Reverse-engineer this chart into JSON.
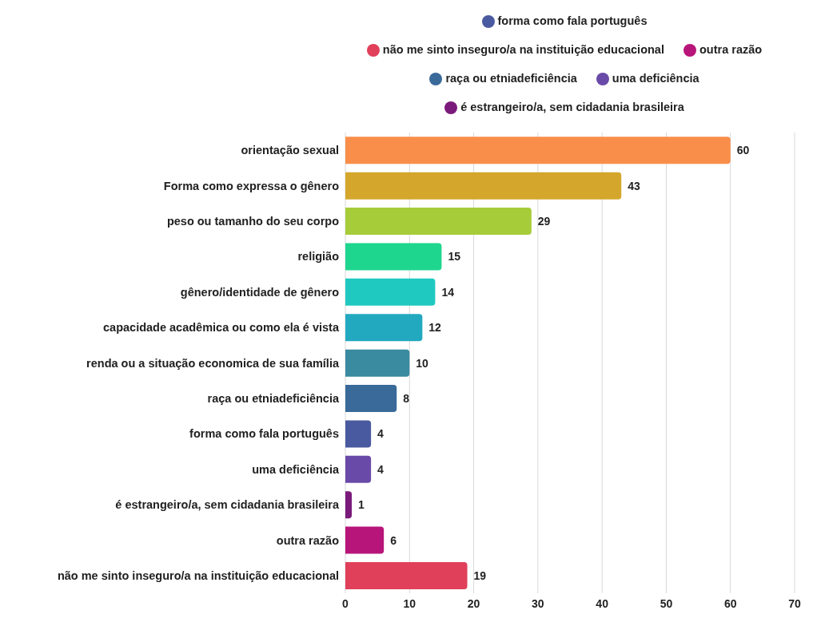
{
  "chart_data": {
    "type": "bar",
    "orientation": "horizontal",
    "stacked": true,
    "data_labels": true,
    "grid": "x",
    "legend": "top",
    "categories": [
      "orientação sexual",
      "Forma como expressa o gênero",
      "peso ou tamanho do seu corpo",
      "religião",
      "gênero/identidade de gênero",
      "capacidade acadêmica ou como ela é vista",
      "renda ou a situação economica de sua família",
      "raça ou etniadeficiência",
      "forma como fala português",
      "uma deficiência",
      "é estrangeiro/a, sem cidadania brasileira",
      "outra razão",
      "não me sinto inseguro/a na instituição educacional"
    ],
    "xlim": [
      0,
      70
    ],
    "xticks": [
      0,
      10,
      20,
      30,
      40,
      50,
      60,
      70
    ],
    "series": [
      {
        "color": "#f98e4a",
        "values": [
          60,
          null,
          null,
          null,
          null,
          null,
          null,
          null,
          null,
          null,
          null,
          null,
          null
        ]
      },
      {
        "color": "#d4a72c",
        "values": [
          null,
          43,
          null,
          null,
          null,
          null,
          null,
          null,
          null,
          null,
          null,
          null,
          null
        ]
      },
      {
        "color": "#a6cc3a",
        "values": [
          null,
          null,
          29,
          null,
          null,
          null,
          null,
          null,
          null,
          null,
          null,
          null,
          null
        ]
      },
      {
        "color": "#1fd68f",
        "values": [
          null,
          null,
          null,
          15,
          null,
          null,
          null,
          null,
          null,
          null,
          null,
          null,
          null
        ]
      },
      {
        "color": "#20c9c0",
        "values": [
          null,
          null,
          null,
          null,
          14,
          null,
          null,
          null,
          null,
          null,
          null,
          null,
          null
        ]
      },
      {
        "color": "#22a9c0",
        "values": [
          null,
          null,
          null,
          null,
          null,
          12,
          null,
          null,
          null,
          null,
          null,
          null,
          null
        ]
      },
      {
        "color": "#3a8aa0",
        "values": [
          null,
          null,
          null,
          null,
          null,
          null,
          10,
          null,
          null,
          null,
          null,
          null,
          null
        ]
      },
      {
        "name": "raça ou etniadeficiência",
        "color": "#3a6a9a",
        "values": [
          null,
          null,
          null,
          null,
          null,
          null,
          null,
          8,
          null,
          null,
          null,
          null,
          null
        ]
      },
      {
        "name": "forma como fala português",
        "color": "#4a5aa0",
        "values": [
          null,
          null,
          null,
          null,
          null,
          null,
          null,
          null,
          4,
          null,
          null,
          null,
          null
        ]
      },
      {
        "name": "uma deficiência",
        "color": "#6a4aa8",
        "values": [
          null,
          null,
          null,
          null,
          null,
          null,
          null,
          null,
          null,
          4,
          null,
          null,
          null
        ]
      },
      {
        "name": "é estrangeiro/a, sem cidadania brasileira",
        "color": "#7a1a7a",
        "values": [
          null,
          null,
          null,
          null,
          null,
          null,
          null,
          null,
          null,
          null,
          1,
          null,
          null
        ]
      },
      {
        "name": "outra razão",
        "color": "#b8157a",
        "values": [
          null,
          null,
          null,
          null,
          null,
          null,
          null,
          null,
          null,
          null,
          null,
          6,
          null
        ]
      },
      {
        "name": "não me sinto inseguro/a na instituição educacional",
        "color": "#e0405a",
        "values": [
          null,
          null,
          null,
          null,
          null,
          null,
          null,
          null,
          null,
          null,
          null,
          null,
          19
        ]
      }
    ]
  }
}
